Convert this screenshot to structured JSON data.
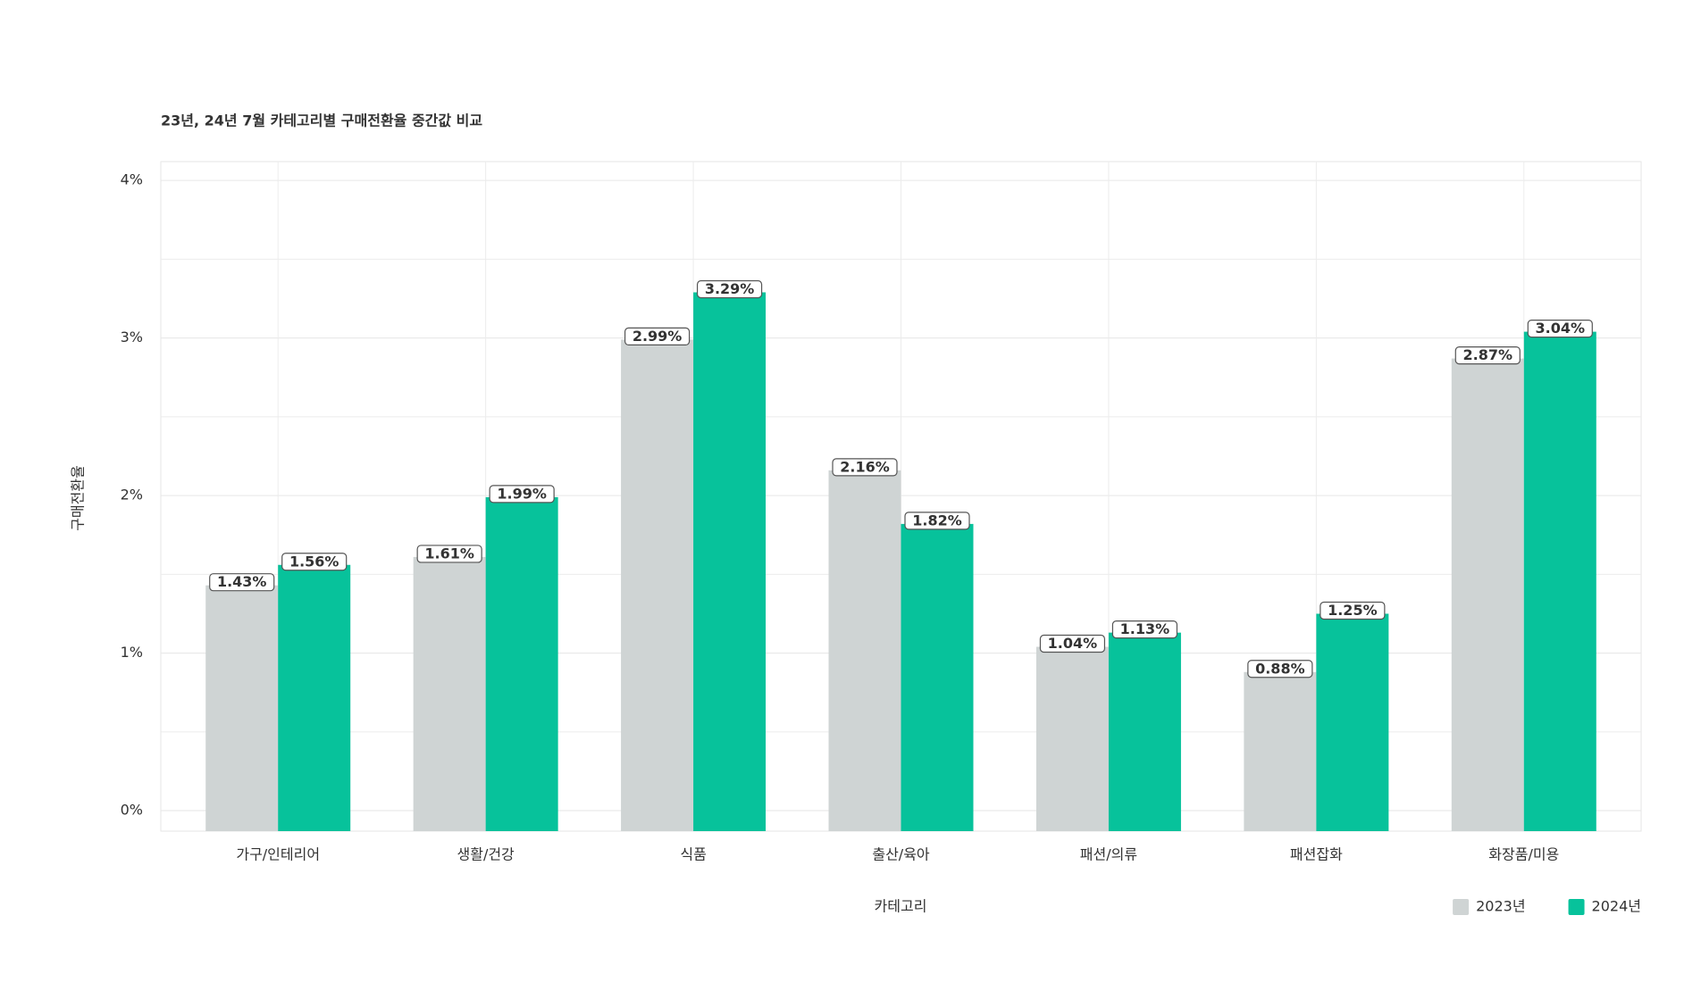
{
  "chart_data": {
    "type": "bar",
    "title": "23년, 24년 7월 카테고리별 구매전환율 중간값 비교",
    "x_label": "카테고리",
    "y_label": "구매전환율",
    "categories": [
      "가구/인테리어",
      "생활/건강",
      "식품",
      "출산/육아",
      "패션/의류",
      "패션잡화",
      "화장품/미용"
    ],
    "series": [
      {
        "name": "2023년",
        "color": "#cfd4d4",
        "values": [
          1.43,
          1.61,
          2.99,
          2.16,
          1.04,
          0.88,
          2.87
        ],
        "value_labels": [
          "1.43%",
          "1.61%",
          "2.99%",
          "2.16%",
          "1.04%",
          "0.88%",
          "2.87%"
        ]
      },
      {
        "name": "2024년",
        "color": "#07c29b",
        "values": [
          1.56,
          1.99,
          3.29,
          1.82,
          1.13,
          1.25,
          3.04
        ],
        "value_labels": [
          "1.56%",
          "1.99%",
          "3.29%",
          "1.82%",
          "1.13%",
          "1.25%",
          "3.04%"
        ]
      }
    ],
    "ylim": [
      -0.13,
      4.12
    ],
    "yticks": [
      {
        "value": 0,
        "label": "0%"
      },
      {
        "value": 1,
        "label": "1%"
      },
      {
        "value": 2,
        "label": "2%"
      },
      {
        "value": 3,
        "label": "3%"
      },
      {
        "value": 4,
        "label": "4%"
      }
    ],
    "yticks_minor": [
      0.5,
      1.5,
      2.5,
      3.5
    ],
    "grid": true,
    "legend": "bottom-right"
  }
}
